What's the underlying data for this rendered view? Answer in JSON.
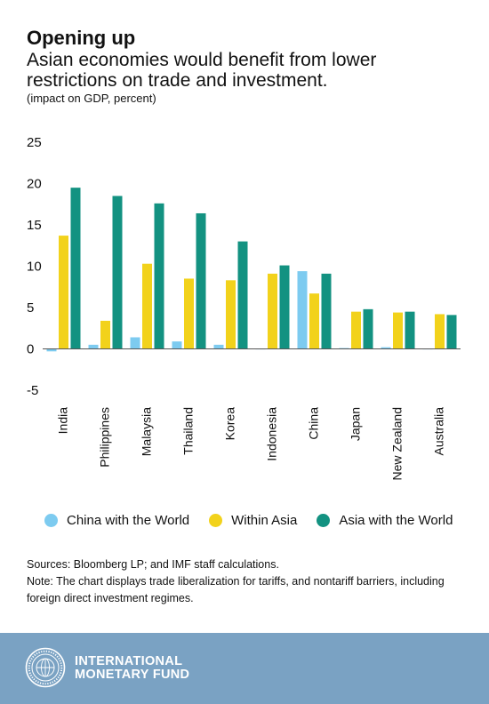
{
  "header": {
    "title": "Opening up",
    "subtitle": "Asian economies would benefit from lower restrictions on trade and investment.",
    "units": "(impact on GDP, percent)"
  },
  "notes": {
    "sources": "Sources: Bloomberg LP; and IMF staff calculations.",
    "note": "Note: The chart displays trade liberalization for tariffs, and nontariff barriers, including foreign direct investment regimes."
  },
  "footer": {
    "line1": "INTERNATIONAL",
    "line2": "MONETARY FUND"
  },
  "chart_data": {
    "type": "bar",
    "categories": [
      "India",
      "Philippines",
      "Malaysia",
      "Thailand",
      "Korea",
      "Indonesia",
      "China",
      "Japan",
      "New Zealand",
      "Australia"
    ],
    "series": [
      {
        "name": "China with the World",
        "color": "#7dcbf0",
        "values": [
          -0.3,
          0.5,
          1.4,
          0.9,
          0.5,
          0.0,
          9.4,
          0.1,
          0.2,
          0.0
        ]
      },
      {
        "name": "Within Asia",
        "color": "#f2d21b",
        "values": [
          13.7,
          3.4,
          10.3,
          8.5,
          8.3,
          9.1,
          6.7,
          4.5,
          4.4,
          4.2
        ]
      },
      {
        "name": "Asia with the World",
        "color": "#139281",
        "values": [
          19.5,
          18.5,
          17.6,
          16.4,
          13.0,
          10.1,
          9.1,
          4.8,
          4.5,
          4.1
        ]
      }
    ],
    "y_ticks": [
      "25",
      "20",
      "15",
      "10",
      "5",
      "0",
      "-5"
    ],
    "ylim": [
      -5,
      25
    ],
    "grid": false,
    "legend": "bottom"
  }
}
